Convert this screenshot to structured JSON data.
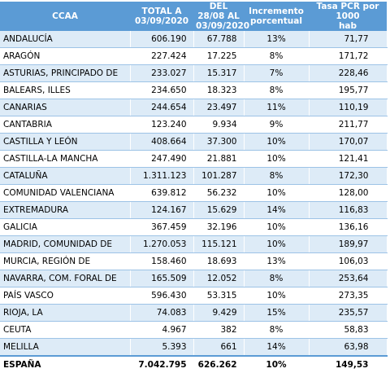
{
  "table": {
    "header": [
      [
        "CCAA"
      ],
      [
        "TOTAL  A",
        "03/09/2020"
      ],
      [
        "DEL 28/08 AL",
        "03/09/2020"
      ],
      [
        "Incremento",
        "porcentual"
      ],
      [
        "Tasa PCR por 1000",
        "hab"
      ]
    ],
    "rows": [
      [
        "ANDALUCÍA",
        "606.190",
        "67.788",
        "13%",
        "71,77"
      ],
      [
        "ARAGÓN",
        "227.424",
        "17.225",
        "8%",
        "171,72"
      ],
      [
        "ASTURIAS, PRINCIPADO DE",
        "233.027",
        "15.317",
        "7%",
        "228,46"
      ],
      [
        "BALEARS, ILLES",
        "234.650",
        "18.323",
        "8%",
        "195,77"
      ],
      [
        "CANARIAS",
        "244.654",
        "23.497",
        "11%",
        "110,19"
      ],
      [
        "CANTABRIA",
        "123.240",
        "9.934",
        "9%",
        "211,77"
      ],
      [
        "CASTILLA Y LEÓN",
        "408.664",
        "37.300",
        "10%",
        "170,07"
      ],
      [
        "CASTILLA-LA MANCHA",
        "247.490",
        "21.881",
        "10%",
        "121,41"
      ],
      [
        "CATALUÑA",
        "1.311.123",
        "101.287",
        "8%",
        "172,30"
      ],
      [
        "COMUNIDAD VALENCIANA",
        "639.812",
        "56.232",
        "10%",
        "128,00"
      ],
      [
        "EXTREMADURA",
        "124.167",
        "15.629",
        "14%",
        "116,83"
      ],
      [
        "GALICIA",
        "367.459",
        "32.196",
        "10%",
        "136,16"
      ],
      [
        "MADRID, COMUNIDAD DE",
        "1.270.053",
        "115.121",
        "10%",
        "189,97"
      ],
      [
        "MURCIA, REGIÓN DE",
        "158.460",
        "18.693",
        "13%",
        "106,03"
      ],
      [
        "NAVARRA, COM. FORAL DE",
        "165.509",
        "12.052",
        "8%",
        "253,64"
      ],
      [
        "PAÍS VASCO",
        "596.430",
        "53.315",
        "10%",
        "273,35"
      ],
      [
        "RIOJA, LA",
        "74.083",
        "9.429",
        "15%",
        "235,57"
      ],
      [
        "CEUTA",
        "4.967",
        "382",
        "8%",
        "58,83"
      ],
      [
        "MELILLA",
        "5.393",
        "661",
        "14%",
        "63,98"
      ]
    ],
    "total": [
      "ESPAÑA",
      "7.042.795",
      "626.262",
      "10%",
      "149,53"
    ]
  }
}
